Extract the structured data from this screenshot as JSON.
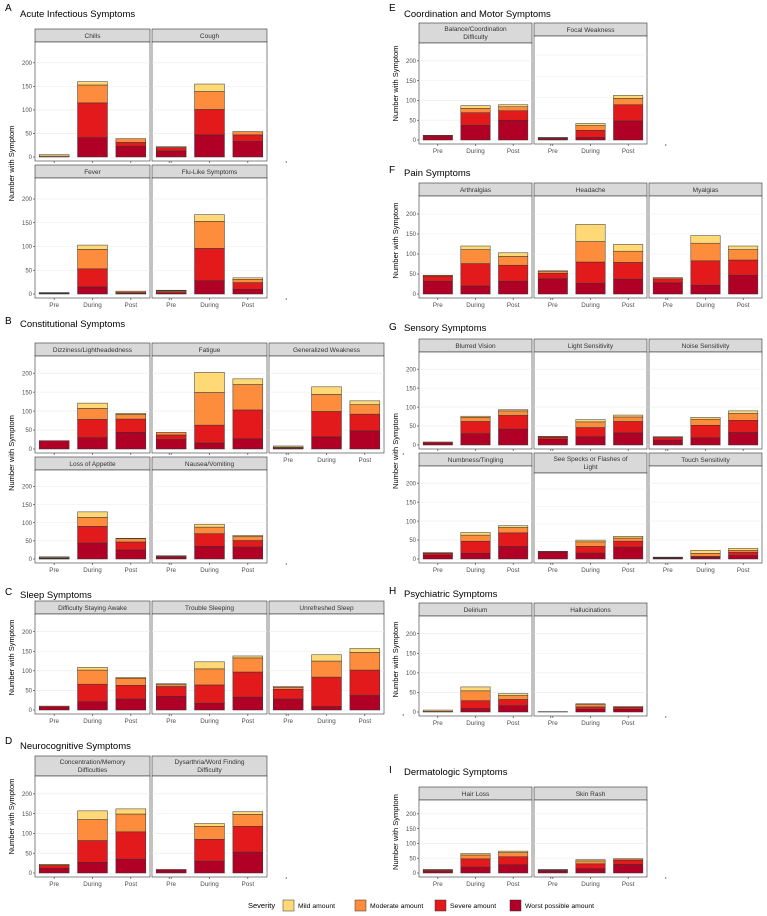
{
  "figure": {
    "y_axis_label": "Number with Symptom",
    "x_categories": [
      "Pre",
      "During",
      "Post"
    ],
    "y_ticks": [
      0,
      50,
      100,
      150,
      200
    ],
    "y_max": 240,
    "colors": {
      "mild": "#FED976",
      "moderate": "#FD8D3C",
      "severe": "#E31A1C",
      "worst": "#B10026",
      "strip": "#D9D9D9"
    }
  },
  "legend": {
    "title": "Severity",
    "items": [
      {
        "key": "mild",
        "label": "Mild amount"
      },
      {
        "key": "moderate",
        "label": "Moderate amount"
      },
      {
        "key": "severe",
        "label": "Severe amount"
      },
      {
        "key": "worst",
        "label": "Worst possible amount"
      }
    ]
  },
  "chart_data": [
    {
      "type": "bar",
      "stacked": true,
      "letter": "A",
      "title": "Acute Infectious Symptoms",
      "panels": [
        {
          "label": "Chills",
          "values": [
            [
              0,
              0,
              2,
              3
            ],
            [
              41,
              74,
              38,
              7
            ],
            [
              23,
              8,
              8,
              0
            ],
            [
              0,
              0,
              0,
              0
            ]
          ]
        },
        {
          "label": "Cough",
          "values": [
            [
              13,
              7,
              2,
              0
            ],
            [
              47,
              54,
              38,
              16
            ],
            [
              33,
              14,
              7,
              0
            ],
            [
              0,
              0,
              0,
              0
            ]
          ]
        },
        {
          "label": "Fever",
          "values": [
            [
              1,
              0,
              1,
              1
            ],
            [
              15,
              38,
              41,
              9
            ],
            [
              2,
              1,
              3,
              0
            ],
            [
              0,
              0,
              0,
              0
            ]
          ]
        },
        {
          "label": "Flu-Like Symptoms",
          "values": [
            [
              2,
              3,
              2,
              1
            ],
            [
              28,
              68,
              57,
              14
            ],
            [
              10,
              14,
              7,
              3
            ],
            [
              0,
              0,
              0,
              0
            ]
          ]
        }
      ]
    },
    {
      "type": "bar",
      "stacked": true,
      "letter": "B",
      "title": "Constitutional Symptoms",
      "panels": [
        {
          "label": "Dizziness/Lightheadedness",
          "values": [
            [
              22,
              0,
              0,
              0
            ],
            [
              30,
              48,
              29,
              14
            ],
            [
              44,
              35,
              12,
              3
            ],
            [
              0,
              0,
              0,
              0
            ]
          ]
        },
        {
          "label": "Fatigue",
          "values": [
            [
              25,
              12,
              7,
              0
            ],
            [
              16,
              47,
              86,
              53
            ],
            [
              27,
              76,
              67,
              15
            ],
            [
              0,
              0,
              0,
              0
            ]
          ]
        },
        {
          "label": "Generalized Weakness",
          "values": [
            [
              1,
              2,
              2,
              3
            ],
            [
              32,
              67,
              45,
              20
            ],
            [
              48,
              44,
              25,
              10
            ],
            [
              0,
              0,
              0,
              0
            ]
          ]
        },
        {
          "label": "Loss of Appetite",
          "values": [
            [
              1,
              1,
              2,
              2
            ],
            [
              44,
              46,
              25,
              15
            ],
            [
              25,
              22,
              9,
              1
            ],
            [
              0,
              0,
              0,
              0
            ]
          ]
        },
        {
          "label": "Nausea/Vomiting",
          "values": [
            [
              5,
              3,
              1,
              0
            ],
            [
              35,
              35,
              18,
              8
            ],
            [
              33,
              18,
              11,
              3
            ],
            [
              0,
              0,
              0,
              0
            ]
          ]
        }
      ]
    },
    {
      "type": "bar",
      "stacked": true,
      "letter": "C",
      "title": "Sleep Symptoms",
      "panels": [
        {
          "label": "Difficulty Staying Awake",
          "values": [
            [
              7,
              3,
              0,
              0
            ],
            [
              21,
              45,
              36,
              7
            ],
            [
              28,
              35,
              18,
              2
            ],
            [
              0,
              0,
              0,
              0
            ]
          ]
        },
        {
          "label": "Trouble Sleeping",
          "values": [
            [
              35,
              25,
              5,
              2
            ],
            [
              17,
              47,
              41,
              18
            ],
            [
              33,
              64,
              36,
              5
            ],
            [
              0,
              0,
              0,
              0
            ]
          ]
        },
        {
          "label": "Unrefreshed Sleep",
          "values": [
            [
              28,
              25,
              5,
              2
            ],
            [
              9,
              75,
              41,
              16
            ],
            [
              37,
              65,
              45,
              10
            ],
            [
              0,
              0,
              0,
              0
            ]
          ]
        }
      ]
    },
    {
      "type": "bar",
      "stacked": true,
      "letter": "D",
      "title": "Neurocognitive Symptoms",
      "panels": [
        {
          "label": "Concentration/Memory Difficulties",
          "values": [
            [
              12,
              7,
              3,
              0
            ],
            [
              27,
              55,
              53,
              22
            ],
            [
              35,
              69,
              45,
              13
            ],
            [
              0,
              0,
              0,
              0
            ]
          ]
        },
        {
          "label": "Dysarthria/Word Finding Difficulty",
          "values": [
            [
              7,
              2,
              0,
              0
            ],
            [
              30,
              55,
              33,
              7
            ],
            [
              53,
              65,
              30,
              7
            ],
            [
              0,
              0,
              0,
              0
            ]
          ]
        }
      ]
    },
    {
      "type": "bar",
      "stacked": true,
      "letter": "E",
      "title": "Coordination and Motor Symptoms",
      "panels": [
        {
          "label": "Balance/Coordination Difficulty",
          "values": [
            [
              10,
              2,
              0,
              0
            ],
            [
              37,
              32,
              11,
              7
            ],
            [
              50,
              24,
              10,
              5
            ],
            [
              0,
              0,
              0,
              0
            ]
          ]
        },
        {
          "label": "Focal Weakness",
          "values": [
            [
              3,
              2,
              1,
              0
            ],
            [
              6,
              17,
              11,
              5
            ],
            [
              45,
              38,
              15,
              7
            ],
            [
              0,
              0,
              0,
              0
            ]
          ]
        }
      ]
    },
    {
      "type": "bar",
      "stacked": true,
      "letter": "F",
      "title": "Pain Symptoms",
      "panels": [
        {
          "label": "Arthralgias",
          "values": [
            [
              32,
              13,
              2,
              0
            ],
            [
              20,
              56,
              35,
              9
            ],
            [
              32,
              40,
              22,
              9
            ],
            [
              0,
              0,
              0,
              0
            ]
          ]
        },
        {
          "label": "Headache",
          "values": [
            [
              38,
              14,
              5,
              1
            ],
            [
              27,
              53,
              51,
              43
            ],
            [
              37,
              42,
              28,
              17
            ],
            [
              0,
              0,
              0,
              0
            ]
          ]
        },
        {
          "label": "Myalgias",
          "values": [
            [
              28,
              10,
              3,
              0
            ],
            [
              22,
              61,
              44,
              19
            ],
            [
              47,
              38,
              26,
              9
            ],
            [
              0,
              0,
              0,
              0
            ]
          ]
        }
      ]
    },
    {
      "type": "bar",
      "stacked": true,
      "letter": "G",
      "title": "Sensory Symptoms",
      "panels": [
        {
          "label": "Blurred Vision",
          "values": [
            [
              5,
              3,
              0,
              0
            ],
            [
              30,
              32,
              11,
              3
            ],
            [
              42,
              36,
              12,
              3
            ],
            [
              0,
              0,
              0,
              0
            ]
          ]
        },
        {
          "label": "Light Sensitivity",
          "values": [
            [
              15,
              6,
              2,
              0
            ],
            [
              22,
              24,
              15,
              6
            ],
            [
              32,
              30,
              12,
              5
            ],
            [
              0,
              0,
              0,
              0
            ]
          ]
        },
        {
          "label": "Noise Sensitivity",
          "values": [
            [
              13,
              7,
              2,
              0
            ],
            [
              19,
              33,
              16,
              5
            ],
            [
              33,
              32,
              18,
              7
            ],
            [
              0,
              0,
              0,
              0
            ]
          ]
        },
        {
          "label": "Numbness/Tingling",
          "values": [
            [
              10,
              5,
              2,
              0
            ],
            [
              15,
              32,
              16,
              7
            ],
            [
              33,
              36,
              14,
              5
            ],
            [
              0,
              0,
              0,
              0
            ]
          ]
        },
        {
          "label": "See Specks or Flashes of Light",
          "values": [
            [
              20,
              2,
              0,
              0
            ],
            [
              17,
              19,
              13,
              5
            ],
            [
              34,
              17,
              9,
              5
            ],
            [
              0,
              0,
              0,
              0
            ]
          ]
        },
        {
          "label": "Touch Sensitivity",
          "values": [
            [
              2,
              2,
              1,
              0
            ],
            [
              5,
              2,
              8,
              8
            ],
            [
              9,
              9,
              5,
              5
            ],
            [
              0,
              0,
              0,
              0
            ]
          ]
        }
      ]
    },
    {
      "type": "bar",
      "stacked": true,
      "letter": "H",
      "title": "Psychiatric Symptoms",
      "panels": [
        {
          "label": "Delirium",
          "values": [
            [
              0,
              0,
              2,
              3
            ],
            [
              9,
              20,
              25,
              10
            ],
            [
              16,
              16,
              10,
              5
            ],
            [
              0,
              0,
              0,
              0
            ]
          ]
        },
        {
          "label": "Hallucinations",
          "values": [
            [
              1,
              0,
              0,
              0
            ],
            [
              7,
              6,
              6,
              2
            ],
            [
              7,
              5,
              2,
              0
            ],
            [
              0,
              0,
              0,
              0
            ]
          ]
        }
      ]
    },
    {
      "type": "bar",
      "stacked": true,
      "letter": "I",
      "title": "Dermatologic Symptoms",
      "panels": [
        {
          "label": "Hair Loss",
          "values": [
            [
              5,
              5,
              2,
              0
            ],
            [
              20,
              28,
              13,
              5
            ],
            [
              28,
              27,
              14,
              5
            ],
            [
              0,
              0,
              0,
              0
            ]
          ]
        },
        {
          "label": "Skin Rash",
          "values": [
            [
              7,
              3,
              2,
              0
            ],
            [
              15,
              16,
              10,
              4
            ],
            [
              29,
              15,
              4,
              0
            ],
            [
              0,
              0,
              0,
              0
            ]
          ]
        }
      ]
    }
  ]
}
